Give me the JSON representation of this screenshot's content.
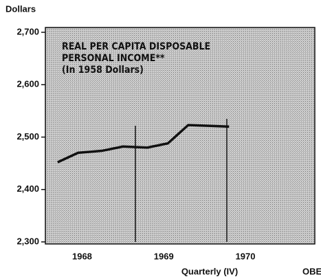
{
  "chart_data": {
    "type": "line",
    "y_axis_label": "Dollars",
    "title_lines": [
      "REAL PER CAPITA DISPOSABLE",
      "PERSONAL INCOME**",
      "(In 1958 Dollars)"
    ],
    "x_axis_label": "Quarterly (IV)",
    "source": "OBE",
    "x": [
      1967.7,
      1967.95,
      1968.25,
      1968.5,
      1968.8,
      1969.05,
      1969.3,
      1969.8
    ],
    "series": [
      {
        "color": "#111111",
        "values": [
          2452,
          2470,
          2474,
          2482,
          2480,
          2488,
          2523,
          2520
        ]
      }
    ],
    "xlim": [
      1967.55,
      1970.85
    ],
    "xticks": [
      1968,
      1969,
      1970
    ],
    "ylim": [
      2300,
      2700
    ],
    "yticks": [
      {
        "value": 2300,
        "label": "2,300"
      },
      {
        "value": 2400,
        "label": "2,400"
      },
      {
        "value": 2500,
        "label": "2,500"
      },
      {
        "value": 2600,
        "label": "2,600"
      },
      {
        "value": 2700,
        "label": "2,700"
      }
    ]
  }
}
